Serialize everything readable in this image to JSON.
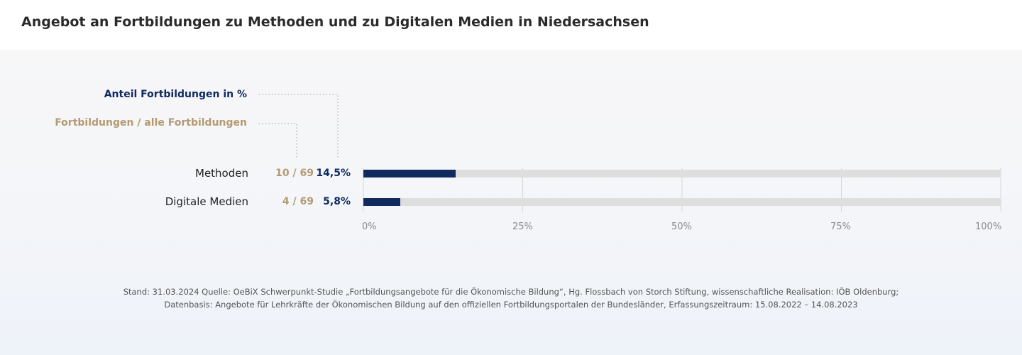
{
  "title": "Angebot an Fortbildungen zu Methoden und zu Digitalen Medien in Niedersachsen",
  "colors": {
    "share": "#102a60",
    "count": "#b39a72",
    "track": "#dedede",
    "grid": "#d6d6d6"
  },
  "legend": {
    "share_label": "Anteil Fortbildungen  in %",
    "count_label": "Fortbildungen / alle Fortbildungen"
  },
  "chart_data": {
    "type": "bar",
    "orientation": "horizontal",
    "categories": [
      "Methoden",
      "Digitale Medien"
    ],
    "values": [
      14.5,
      5.8
    ],
    "value_labels": [
      "14,5%",
      "5,8%"
    ],
    "count_labels": [
      "10 / 69",
      "4 / 69"
    ],
    "xlim": [
      0,
      100
    ],
    "x_ticks": [
      "0%",
      "25%",
      "50%",
      "75%",
      "100%"
    ],
    "grid": true
  },
  "footer": {
    "line1": "Stand: 31.03.2024 Quelle: OeBiX Schwerpunkt-Studie „Fortbildungsangebote für die Ökonomische Bildung“, Hg. Flossbach von Storch Stiftung, wissenschaftliche Realisation: IÖB Oldenburg;",
    "line2": "Datenbasis: Angebote für Lehrkräfte der Ökonomischen Bildung auf den offiziellen Fortbildungsportalen der Bundesländer, Erfassungszeitraum: 15.08.2022 – 14.08.2023"
  }
}
